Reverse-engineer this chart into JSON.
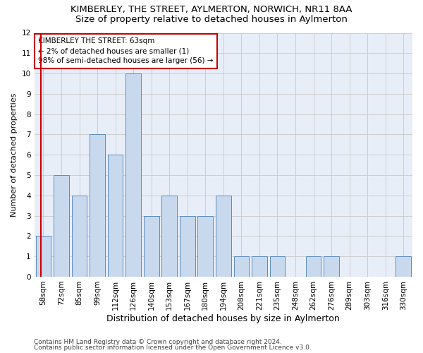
{
  "title": "KIMBERLEY, THE STREET, AYLMERTON, NORWICH, NR11 8AA",
  "subtitle": "Size of property relative to detached houses in Aylmerton",
  "xlabel": "Distribution of detached houses by size in Aylmerton",
  "ylabel": "Number of detached properties",
  "categories": [
    "58sqm",
    "72sqm",
    "85sqm",
    "99sqm",
    "112sqm",
    "126sqm",
    "140sqm",
    "153sqm",
    "167sqm",
    "180sqm",
    "194sqm",
    "208sqm",
    "221sqm",
    "235sqm",
    "248sqm",
    "262sqm",
    "276sqm",
    "289sqm",
    "303sqm",
    "316sqm",
    "330sqm"
  ],
  "values": [
    2,
    5,
    4,
    7,
    6,
    10,
    3,
    4,
    3,
    3,
    4,
    1,
    1,
    1,
    0,
    1,
    1,
    0,
    0,
    0,
    1
  ],
  "bar_color": "#c9d9ed",
  "bar_edge_color": "#5b8bbf",
  "annotation_box_text": "KIMBERLEY THE STREET: 63sqm\n← 2% of detached houses are smaller (1)\n98% of semi-detached houses are larger (56) →",
  "annotation_box_color": "#ffffff",
  "annotation_box_edge_color": "#cc0000",
  "vline_color": "#cc0000",
  "ylim": [
    0,
    12
  ],
  "yticks": [
    0,
    1,
    2,
    3,
    4,
    5,
    6,
    7,
    8,
    9,
    10,
    11,
    12
  ],
  "grid_color": "#c8c8c8",
  "footer_line1": "Contains HM Land Registry data © Crown copyright and database right 2024.",
  "footer_line2": "Contains public sector information licensed under the Open Government Licence v3.0.",
  "title_fontsize": 9.5,
  "subtitle_fontsize": 9.5,
  "xlabel_fontsize": 9,
  "ylabel_fontsize": 8,
  "tick_fontsize": 7.5,
  "footer_fontsize": 6.5,
  "annotation_fontsize": 7.5,
  "bg_color": "#e8eef8"
}
